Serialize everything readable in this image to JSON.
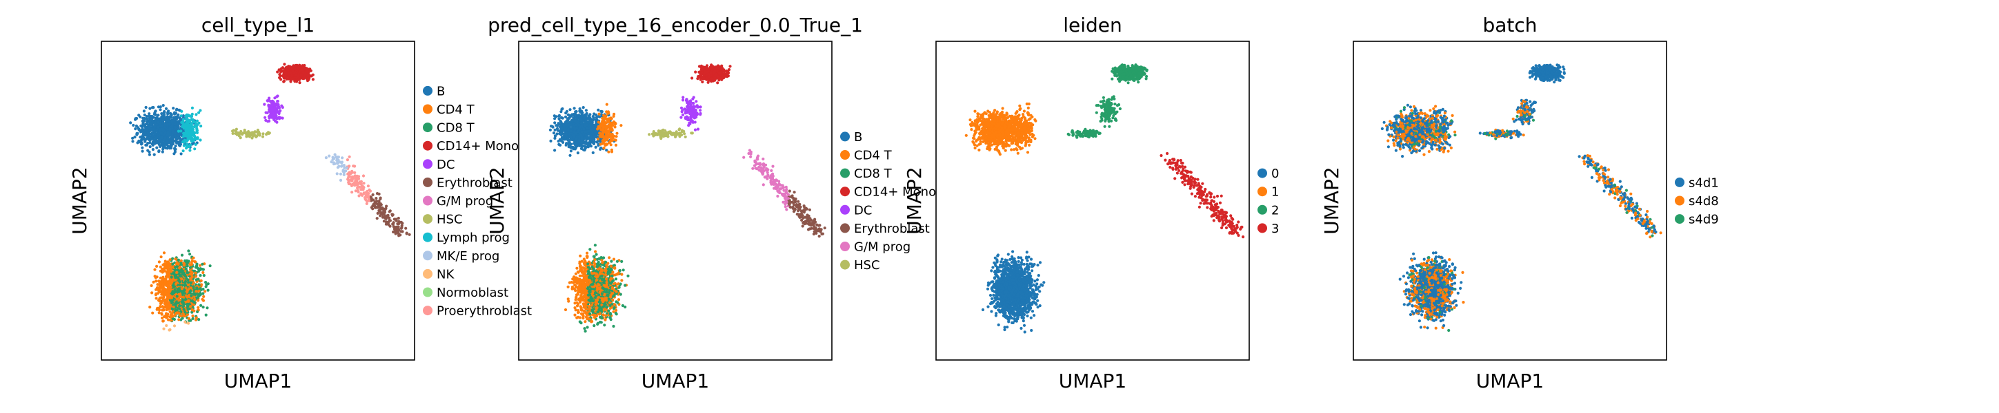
{
  "chart_data": [
    {
      "type": "scatter",
      "title": "cell_type_l1",
      "xlabel": "UMAP1",
      "ylabel": "UMAP2",
      "grid": false,
      "legend_placement": "right",
      "series": [
        {
          "name": "B",
          "color": "#1f77b4"
        },
        {
          "name": "CD4 T",
          "color": "#ff7f0e"
        },
        {
          "name": "CD8 T",
          "color": "#279e68"
        },
        {
          "name": "CD14+ Mono",
          "color": "#d62728"
        },
        {
          "name": "DC",
          "color": "#aa40fc"
        },
        {
          "name": "Erythroblast",
          "color": "#8c564b"
        },
        {
          "name": "G/M prog",
          "color": "#e377c2"
        },
        {
          "name": "HSC",
          "color": "#b5bd61"
        },
        {
          "name": "Lymph prog",
          "color": "#17becf"
        },
        {
          "name": "MK/E prog",
          "color": "#aec7e8"
        },
        {
          "name": "NK",
          "color": "#ffbb78"
        },
        {
          "name": "Normoblast",
          "color": "#98df8a"
        },
        {
          "name": "Proerythroblast",
          "color": "#ff9896"
        }
      ]
    },
    {
      "type": "scatter",
      "title": "pred_cell_type_16_encoder_0.0_True_1",
      "xlabel": "UMAP1",
      "ylabel": "UMAP2",
      "grid": false,
      "legend_placement": "right",
      "series": [
        {
          "name": "B",
          "color": "#1f77b4"
        },
        {
          "name": "CD4 T",
          "color": "#ff7f0e"
        },
        {
          "name": "CD8 T",
          "color": "#279e68"
        },
        {
          "name": "CD14+ Mono",
          "color": "#d62728"
        },
        {
          "name": "DC",
          "color": "#aa40fc"
        },
        {
          "name": "Erythroblast",
          "color": "#8c564b"
        },
        {
          "name": "G/M prog",
          "color": "#e377c2"
        },
        {
          "name": "HSC",
          "color": "#b5bd61"
        }
      ]
    },
    {
      "type": "scatter",
      "title": "leiden",
      "xlabel": "UMAP1",
      "ylabel": "UMAP2",
      "grid": false,
      "legend_placement": "right",
      "series": [
        {
          "name": "0",
          "color": "#1f77b4"
        },
        {
          "name": "1",
          "color": "#ff7f0e"
        },
        {
          "name": "2",
          "color": "#279e68"
        },
        {
          "name": "3",
          "color": "#d62728"
        }
      ]
    },
    {
      "type": "scatter",
      "title": "batch",
      "xlabel": "UMAP1",
      "ylabel": "UMAP2",
      "grid": false,
      "legend_placement": "right",
      "series": [
        {
          "name": "s4d1",
          "color": "#1f77b4"
        },
        {
          "name": "s4d8",
          "color": "#ff7f0e"
        },
        {
          "name": "s4d9",
          "color": "#279e68"
        }
      ]
    }
  ]
}
